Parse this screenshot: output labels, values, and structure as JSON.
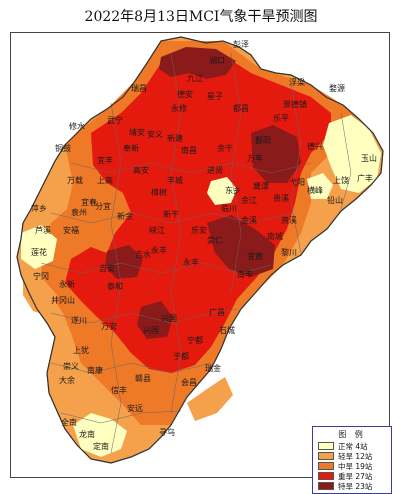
{
  "title": "2022年8月13日MCI气象干旱预测图",
  "legend": {
    "title": "图 例",
    "items": [
      {
        "label": "正常 4站",
        "color": "#ffffc0"
      },
      {
        "label": "轻旱 12站",
        "color": "#f5a04a"
      },
      {
        "label": "中旱 19站",
        "color": "#ee7a28"
      },
      {
        "label": "重旱 27站",
        "color": "#e41a0f"
      },
      {
        "label": "特旱 23站",
        "color": "#8b1a1a"
      }
    ]
  },
  "places": [
    "彭泽",
    "湖口",
    "九江",
    "瑞昌",
    "武宁",
    "修水",
    "永修",
    "德安",
    "星子",
    "都昌",
    "浮梁",
    "景德镇",
    "婺源",
    "乐平",
    "鄱阳",
    "万年",
    "余干",
    "德兴",
    "玉山",
    "广丰",
    "上饶",
    "铅山",
    "横峰",
    "弋阳",
    "贵溪",
    "鹰潭",
    "余江",
    "东乡",
    "进贤",
    "南昌",
    "新建",
    "安义",
    "奉新",
    "靖安",
    "宜丰",
    "铜鼓",
    "万载",
    "上高",
    "高安",
    "丰城",
    "樟树",
    "新干",
    "峡江",
    "分宜",
    "新余",
    "萍乡",
    "芦溪",
    "莲花",
    "安福",
    "吉安",
    "吉水",
    "永丰",
    "乐安",
    "宜黄",
    "崇仁",
    "南城",
    "南丰",
    "黎川",
    "资溪",
    "金溪",
    "临川",
    "广昌",
    "石城",
    "宁都",
    "兴国",
    "于都",
    "瑞金",
    "会昌",
    "安远",
    "寻乌",
    "定南",
    "龙南",
    "全南",
    "信丰",
    "赣县",
    "南康",
    "大余",
    "崇义",
    "上犹",
    "遂川",
    "万安",
    "泰和",
    "永新",
    "井冈山",
    "宁冈",
    "兴国",
    "永丰",
    "宜春",
    "袁州"
  ]
}
